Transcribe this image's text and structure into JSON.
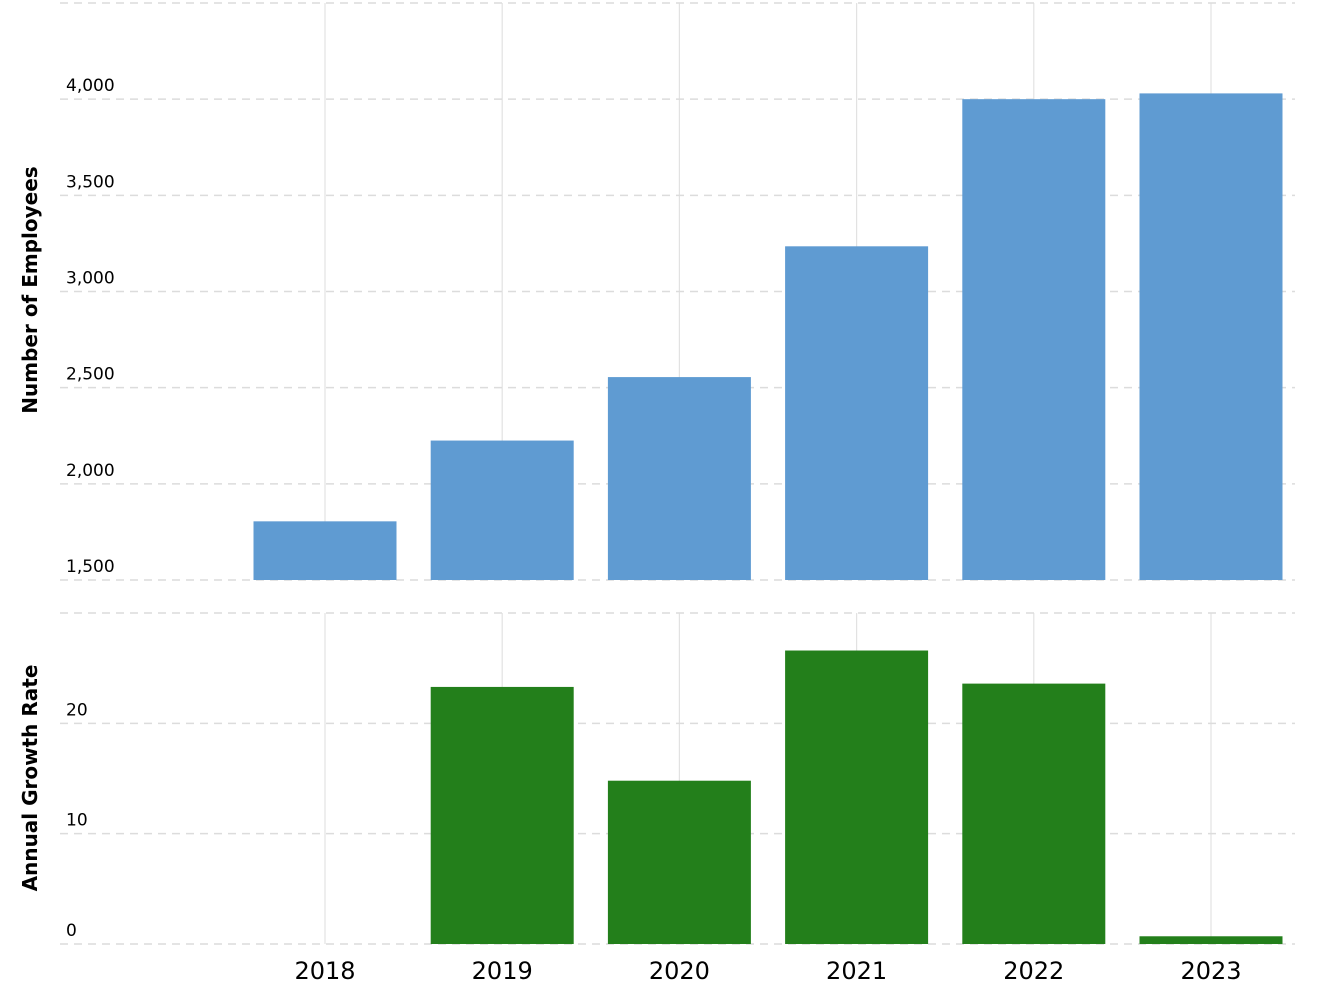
{
  "chart_data": [
    {
      "type": "bar",
      "categories": [
        "2018",
        "2019",
        "2020",
        "2021",
        "2022",
        "2023"
      ],
      "values": [
        1805,
        2225,
        2555,
        3235,
        4000,
        4030
      ],
      "ylabel": "Number of Employees",
      "ylim": [
        1500,
        4500
      ],
      "yticks": [
        1500,
        2000,
        2500,
        3000,
        3500,
        4000
      ],
      "ytick_labels": [
        "1,500",
        "2,000",
        "2,500",
        "3,000",
        "3,500",
        "4,000"
      ],
      "color": "#5f9bd2",
      "grid": true
    },
    {
      "type": "bar",
      "categories": [
        "2018",
        "2019",
        "2020",
        "2021",
        "2022",
        "2023"
      ],
      "values": [
        0,
        23.3,
        14.8,
        26.6,
        23.6,
        0.7
      ],
      "ylabel": "Annual Growth Rate",
      "ylim": [
        0,
        30
      ],
      "yticks": [
        0,
        10,
        20
      ],
      "ytick_labels": [
        "0",
        "10",
        "20"
      ],
      "color": "#237f1b",
      "grid": true
    }
  ]
}
